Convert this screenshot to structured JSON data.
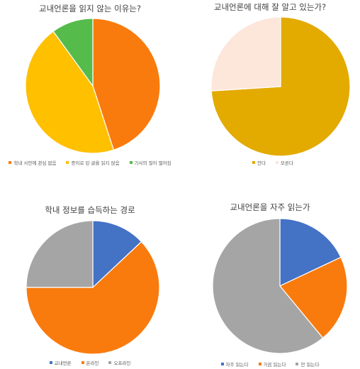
{
  "chart_data": [
    {
      "type": "pie",
      "title": "교내언론을 읽지 않는 이유는?",
      "categories": [
        "학내 사안에 관심 없음",
        "종이로 된 글을 읽지 않음",
        "기사의 질이 떨어짐"
      ],
      "values": [
        45,
        45,
        10
      ],
      "colors": [
        "#F97B0D",
        "#FFC000",
        "#55BB4B"
      ],
      "legend": "bottom"
    },
    {
      "type": "pie",
      "title": "교내언론에 대해 잘 알고 있는가?",
      "categories": [
        "안다",
        "모른다"
      ],
      "values": [
        74,
        26
      ],
      "colors": [
        "#E3AA00",
        "#FDE6DA"
      ],
      "legend": "bottom"
    },
    {
      "type": "pie",
      "title": "학내 정보를 습득하는 경로",
      "categories": [
        "교내언론",
        "온라인",
        "오프라인"
      ],
      "values": [
        13,
        62,
        25
      ],
      "colors": [
        "#4472C4",
        "#F97B0D",
        "#A5A5A5"
      ],
      "legend": "bottom"
    },
    {
      "type": "pie",
      "title": "교내언론을 자주 읽는가",
      "categories": [
        "자주 읽는다",
        "가끔 읽는다",
        "안 읽는다"
      ],
      "values": [
        18,
        21,
        61
      ],
      "colors": [
        "#4472C4",
        "#F97B0D",
        "#A5A5A5"
      ],
      "legend": "bottom"
    }
  ]
}
